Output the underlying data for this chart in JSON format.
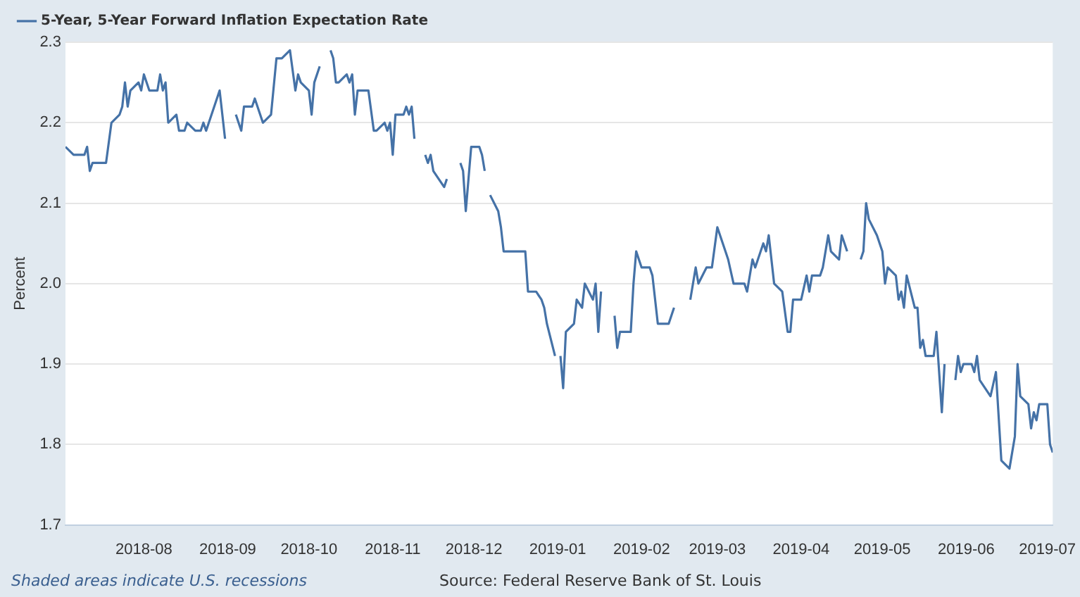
{
  "chart_data": {
    "type": "line",
    "ylabel": "Percent",
    "xlim": [
      "2018-07-03",
      "2019-07-03"
    ],
    "xticks": [
      "2018-08",
      "2018-09",
      "2018-10",
      "2018-11",
      "2018-12",
      "2019-01",
      "2019-02",
      "2019-03",
      "2019-04",
      "2019-05",
      "2019-06",
      "2019-07"
    ],
    "ylim": [
      1.7,
      2.3
    ],
    "yticks": [
      1.7,
      1.8,
      1.9,
      {
        "value": 2.0,
        "label": "2.0"
      },
      2.1,
      2.2,
      2.3
    ],
    "grid": "y",
    "legend": "top left",
    "marker": "none",
    "line_style": "solid",
    "annotations": [
      "Shaded areas indicate U.S. recessions",
      "Source: Federal Reserve Bank of St. Louis"
    ],
    "x": [
      "2018-07-03",
      "2018-07-06",
      "2018-07-10",
      "2018-07-11",
      "2018-07-12",
      "2018-07-13",
      "2018-07-18",
      "2018-07-20",
      "2018-07-23",
      "2018-07-24",
      "2018-07-25",
      "2018-07-26",
      "2018-07-27",
      "2018-07-30",
      "2018-07-31",
      "2018-08-01",
      "2018-08-03",
      "2018-08-06",
      "2018-08-07",
      "2018-08-08",
      "2018-08-09",
      "2018-08-10",
      "2018-08-13",
      "2018-08-14",
      "2018-08-16",
      "2018-08-17",
      "2018-08-20",
      "2018-08-22",
      "2018-08-23",
      "2018-08-24",
      "2018-08-29",
      "2018-08-31",
      "2018-09-03",
      "2018-09-04",
      "2018-09-06",
      "2018-09-07",
      "2018-09-10",
      "2018-09-11",
      "2018-09-12",
      "2018-09-14",
      "2018-09-17",
      "2018-09-19",
      "2018-09-21",
      "2018-09-24",
      "2018-09-26",
      "2018-09-27",
      "2018-09-28",
      "2018-10-01",
      "2018-10-02",
      "2018-10-03",
      "2018-10-05",
      "2018-10-08",
      "2018-10-09",
      "2018-10-10",
      "2018-10-11",
      "2018-10-12",
      "2018-10-15",
      "2018-10-16",
      "2018-10-17",
      "2018-10-18",
      "2018-10-19",
      "2018-10-23",
      "2018-10-25",
      "2018-10-26",
      "2018-10-29",
      "2018-10-30",
      "2018-10-31",
      "2018-11-01",
      "2018-11-02",
      "2018-11-05",
      "2018-11-06",
      "2018-11-07",
      "2018-11-08",
      "2018-11-09",
      "2018-11-12",
      "2018-11-13",
      "2018-11-14",
      "2018-11-15",
      "2018-11-16",
      "2018-11-20",
      "2018-11-21",
      "2018-11-22",
      "2018-11-26",
      "2018-11-27",
      "2018-11-28",
      "2018-11-30",
      "2018-12-03",
      "2018-12-04",
      "2018-12-05",
      "2018-12-06",
      "2018-12-07",
      "2018-12-10",
      "2018-12-11",
      "2018-12-12",
      "2018-12-20",
      "2018-12-21",
      "2018-12-24",
      "2018-12-26",
      "2018-12-27",
      "2018-12-28",
      "2018-12-31",
      "2019-01-01",
      "2019-01-02",
      "2019-01-03",
      "2019-01-04",
      "2019-01-07",
      "2019-01-08",
      "2019-01-10",
      "2019-01-11",
      "2019-01-14",
      "2019-01-15",
      "2019-01-16",
      "2019-01-17",
      "2019-01-21",
      "2019-01-22",
      "2019-01-23",
      "2019-01-24",
      "2019-01-28",
      "2019-01-29",
      "2019-01-30",
      "2019-02-01",
      "2019-02-04",
      "2019-02-05",
      "2019-02-07",
      "2019-02-11",
      "2019-02-12",
      "2019-02-13",
      "2019-02-18",
      "2019-02-19",
      "2019-02-21",
      "2019-02-22",
      "2019-02-25",
      "2019-02-27",
      "2019-03-01",
      "2019-03-04",
      "2019-03-05",
      "2019-03-07",
      "2019-03-11",
      "2019-03-12",
      "2019-03-14",
      "2019-03-15",
      "2019-03-18",
      "2019-03-19",
      "2019-03-20",
      "2019-03-22",
      "2019-03-25",
      "2019-03-27",
      "2019-03-28",
      "2019-03-29",
      "2019-04-01",
      "2019-04-03",
      "2019-04-04",
      "2019-04-05",
      "2019-04-08",
      "2019-04-09",
      "2019-04-11",
      "2019-04-12",
      "2019-04-15",
      "2019-04-16",
      "2019-04-18",
      "2019-04-19",
      "2019-04-23",
      "2019-04-24",
      "2019-04-25",
      "2019-04-26",
      "2019-04-29",
      "2019-05-01",
      "2019-05-02",
      "2019-05-03",
      "2019-05-06",
      "2019-05-07",
      "2019-05-08",
      "2019-05-09",
      "2019-05-10",
      "2019-05-13",
      "2019-05-14",
      "2019-05-15",
      "2019-05-16",
      "2019-05-17",
      "2019-05-20",
      "2019-05-21",
      "2019-05-23",
      "2019-05-24",
      "2019-05-27",
      "2019-05-28",
      "2019-05-29",
      "2019-05-30",
      "2019-05-31",
      "2019-06-03",
      "2019-06-04",
      "2019-06-05",
      "2019-06-06",
      "2019-06-10",
      "2019-06-12",
      "2019-06-14",
      "2019-06-17",
      "2019-06-19",
      "2019-06-20",
      "2019-06-21",
      "2019-06-24",
      "2019-06-25",
      "2019-06-26",
      "2019-06-27",
      "2019-06-28",
      "2019-07-01",
      "2019-07-02",
      "2019-07-03"
    ],
    "series": [
      {
        "name": "5-Year, 5-Year Forward Inflation Expectation Rate",
        "color": "#4572a7",
        "values": [
          2.17,
          2.16,
          2.16,
          2.17,
          2.14,
          2.15,
          2.15,
          2.2,
          2.21,
          2.22,
          2.25,
          2.22,
          2.24,
          2.25,
          2.24,
          2.26,
          2.24,
          2.24,
          2.26,
          2.24,
          2.25,
          2.2,
          2.21,
          2.19,
          2.19,
          2.2,
          2.19,
          2.19,
          2.2,
          2.19,
          2.24,
          2.18,
          null,
          2.21,
          2.19,
          2.22,
          2.22,
          2.23,
          2.22,
          2.2,
          2.21,
          2.28,
          2.28,
          2.29,
          2.24,
          2.26,
          2.25,
          2.24,
          2.21,
          2.25,
          2.27,
          null,
          2.29,
          2.28,
          2.25,
          2.25,
          2.26,
          2.25,
          2.26,
          2.21,
          2.24,
          2.24,
          2.19,
          2.19,
          2.2,
          2.19,
          2.2,
          2.16,
          2.21,
          2.21,
          2.22,
          2.21,
          2.22,
          2.18,
          null,
          2.16,
          2.15,
          2.16,
          2.14,
          2.12,
          2.13,
          null,
          2.15,
          2.14,
          2.09,
          2.17,
          2.17,
          2.16,
          2.14,
          null,
          2.11,
          2.09,
          2.07,
          2.04,
          2.04,
          1.99,
          1.99,
          1.98,
          1.97,
          1.95,
          1.91,
          null,
          1.91,
          1.87,
          1.94,
          1.95,
          1.98,
          1.97,
          2.0,
          1.98,
          2.0,
          1.94,
          1.99,
          null,
          1.96,
          1.92,
          1.94,
          1.94,
          2.0,
          2.04,
          2.02,
          2.02,
          2.01,
          1.95,
          1.95,
          1.96,
          1.97,
          null,
          1.98,
          2.02,
          2.0,
          2.02,
          2.02,
          2.07,
          2.04,
          2.03,
          2.0,
          2.0,
          1.99,
          2.03,
          2.02,
          2.05,
          2.04,
          2.06,
          2.0,
          1.99,
          1.94,
          1.94,
          1.98,
          1.98,
          2.01,
          1.99,
          2.01,
          2.01,
          2.02,
          2.06,
          2.04,
          2.03,
          2.06,
          2.04,
          null,
          2.03,
          2.04,
          2.1,
          2.08,
          2.06,
          2.04,
          2.0,
          2.02,
          2.01,
          1.98,
          1.99,
          1.97,
          2.01,
          1.97,
          1.97,
          1.92,
          1.93,
          1.91,
          1.91,
          1.94,
          1.84,
          1.9,
          null,
          1.88,
          1.91,
          1.89,
          1.9,
          1.9,
          1.89,
          1.91,
          1.88,
          1.86,
          1.89,
          1.78,
          1.77,
          1.81,
          1.9,
          1.86,
          1.85,
          1.82,
          1.84,
          1.83,
          1.85,
          1.85,
          1.8,
          1.79
        ]
      }
    ]
  }
}
